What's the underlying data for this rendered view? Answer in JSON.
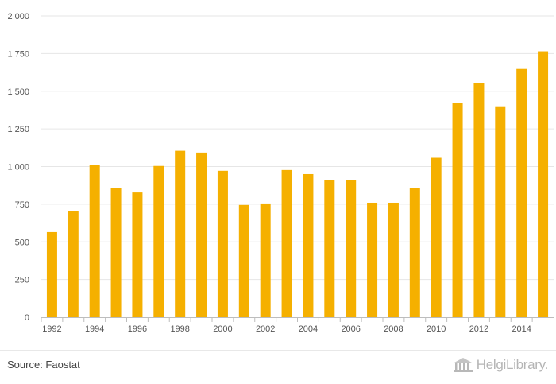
{
  "chart_data": {
    "type": "bar",
    "title": "",
    "xlabel": "",
    "ylabel": "",
    "categories": [
      "1992",
      "1993",
      "1994",
      "1995",
      "1996",
      "1997",
      "1998",
      "1999",
      "2000",
      "2001",
      "2002",
      "2003",
      "2004",
      "2005",
      "2006",
      "2007",
      "2008",
      "2009",
      "2010",
      "2011",
      "2012",
      "2013",
      "2014",
      "2015"
    ],
    "values": [
      565,
      707,
      1010,
      860,
      828,
      1004,
      1105,
      1093,
      972,
      745,
      755,
      977,
      950,
      908,
      912,
      760,
      760,
      860,
      1058,
      1422,
      1553,
      1400,
      1648,
      1765
    ],
    "x_tick_labels": [
      "1992",
      "1994",
      "1996",
      "1998",
      "2000",
      "2002",
      "2004",
      "2006",
      "2008",
      "2010",
      "2012",
      "2014"
    ],
    "y_ticks": [
      0,
      250,
      500,
      750,
      1000,
      1250,
      1500,
      1750,
      2000
    ],
    "y_tick_labels": [
      "0",
      "250",
      "500",
      "750",
      "1 000",
      "1 250",
      "1 500",
      "1 750",
      "2 000"
    ],
    "ylim": [
      0,
      2000
    ],
    "grid": true,
    "bar_color": "#f5b000"
  },
  "footer": {
    "source": "Source: Faostat",
    "logo_text": "HelgiLibrary."
  }
}
